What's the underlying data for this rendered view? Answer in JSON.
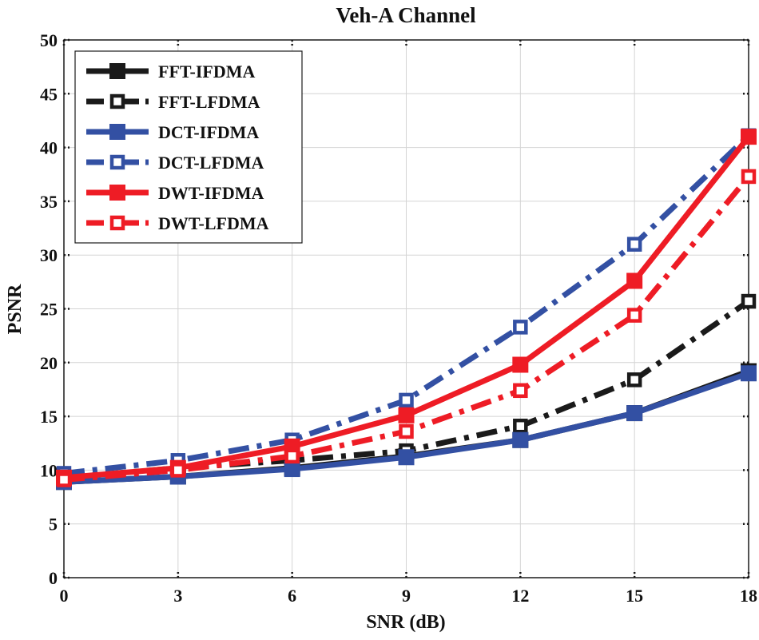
{
  "chart_data": {
    "type": "line",
    "title": "Veh-A Channel",
    "xlabel": "SNR (dB)",
    "ylabel": "PSNR",
    "x": [
      0,
      3,
      6,
      9,
      12,
      15,
      18
    ],
    "x_ticks": [
      "0",
      "3",
      "6",
      "9",
      "12",
      "15",
      "18"
    ],
    "y_ticks": [
      "0",
      "5",
      "10",
      "15",
      "20",
      "25",
      "30",
      "35",
      "40",
      "45",
      "50"
    ],
    "xlim": [
      0,
      18
    ],
    "ylim": [
      0,
      50
    ],
    "grid": true,
    "legend_position": "top-left",
    "series": [
      {
        "name": "FFT-IFDMA",
        "color": "#1a1a1a",
        "style": "solid",
        "marker": "filled-square",
        "values": [
          8.9,
          9.4,
          10.2,
          11.3,
          12.8,
          15.3,
          19.2
        ]
      },
      {
        "name": "FFT-LFDMA",
        "color": "#1a1a1a",
        "style": "dashdot",
        "marker": "open-square",
        "values": [
          9.3,
          10.2,
          10.9,
          11.8,
          14.1,
          18.4,
          25.7
        ]
      },
      {
        "name": "DCT-IFDMA",
        "color": "#3350a3",
        "style": "solid",
        "marker": "filled-square",
        "values": [
          8.9,
          9.4,
          10.1,
          11.2,
          12.8,
          15.3,
          19.0
        ]
      },
      {
        "name": "DCT-LFDMA",
        "color": "#3350a3",
        "style": "dashdot",
        "marker": "open-square",
        "values": [
          9.7,
          10.9,
          12.8,
          16.5,
          23.3,
          31.0,
          41.1
        ]
      },
      {
        "name": "DWT-IFDMA",
        "color": "#ee1c25",
        "style": "solid",
        "marker": "filled-square",
        "values": [
          9.3,
          10.2,
          12.2,
          15.1,
          19.8,
          27.6,
          41.0
        ]
      },
      {
        "name": "DWT-LFDMA",
        "color": "#ee1c25",
        "style": "dashdot",
        "marker": "open-square",
        "values": [
          9.1,
          10.0,
          11.3,
          13.6,
          17.4,
          24.4,
          37.3
        ]
      }
    ]
  }
}
